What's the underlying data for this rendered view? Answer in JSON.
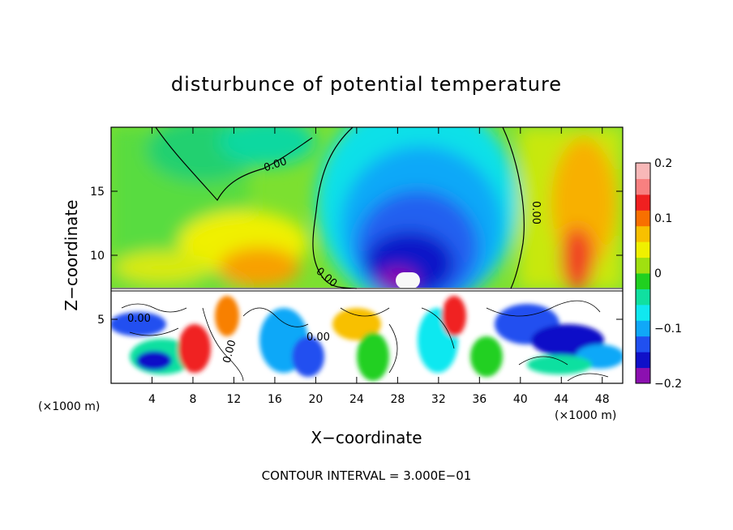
{
  "chart_data": {
    "type": "heatmap",
    "title": "disturbunce of potential temperature",
    "xlabel": "X−coordinate",
    "ylabel": "Z−coordinate",
    "x_unit_left": "(×1000 m)",
    "x_unit_right": "(×1000 m)",
    "xlim": [
      0,
      50
    ],
    "ylim": [
      0,
      20
    ],
    "x_ticks": [
      4,
      8,
      12,
      16,
      20,
      24,
      28,
      32,
      36,
      40,
      44,
      48
    ],
    "y_ticks": [
      5,
      10,
      15
    ],
    "colorbar": {
      "ticks": [
        {
          "value": 0.2,
          "label": "0.2"
        },
        {
          "value": 0.1,
          "label": "0.1"
        },
        {
          "value": 0,
          "label": "0"
        },
        {
          "value": -0.1,
          "label": "−0.1"
        },
        {
          "value": -0.2,
          "label": "−0.2"
        }
      ],
      "range": [
        -0.2,
        0.2
      ],
      "colors": [
        "#8c10b0",
        "#1010c8",
        "#2050f0",
        "#10a8f8",
        "#10e8f0",
        "#10e0a0",
        "#20d020",
        "#a0e010",
        "#f0f000",
        "#f8c000",
        "#f87000",
        "#f02020",
        "#f88080",
        "#f8b8b8"
      ]
    },
    "contour_labels": [
      "0.00",
      "0.00",
      "0.00",
      "0.00",
      "0.00",
      "0.00"
    ],
    "footer": "CONTOUR INTERVAL = 3.000E−01"
  }
}
